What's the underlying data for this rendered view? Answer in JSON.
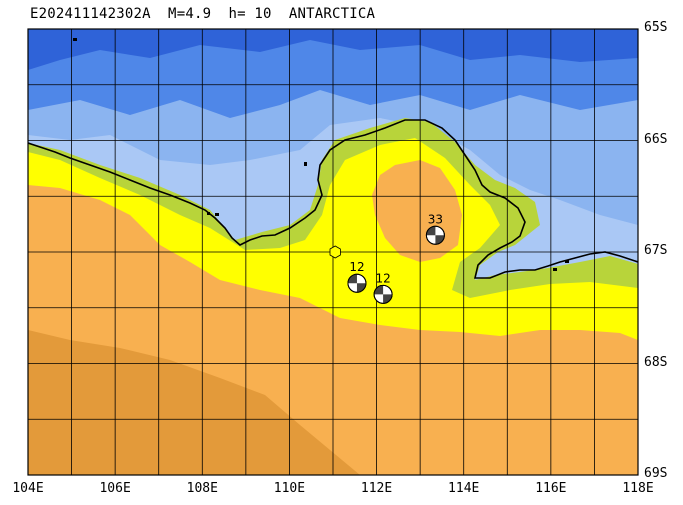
{
  "header": {
    "title": "E202411142302A  M=4.9  h= 10  ANTARCTICA"
  },
  "map": {
    "region": "Antarctica",
    "lon_range": [
      104,
      118
    ],
    "lat_range": [
      -65,
      -69
    ],
    "lon_labels": [
      "104E",
      "106E",
      "108E",
      "110E",
      "112E",
      "114E",
      "116E",
      "118E"
    ],
    "lat_labels": [
      "65S",
      "66S",
      "67S",
      "68S",
      "69S"
    ],
    "colors": {
      "ocean_deep": "#2f63d8",
      "ocean_mid": "#4f87e8",
      "ocean_light": "#8bb4f0",
      "ocean_shelf": "#aac8f5",
      "land_low": "#b8d43a",
      "land_mid": "#ffff00",
      "land_high": "#f8b050",
      "land_top": "#e39a3a",
      "coast": "#000000",
      "grid": "#000000",
      "epicenter": "#ffff00"
    },
    "epicenter": {
      "lon": 111.05,
      "lat": -67.0
    },
    "events": [
      {
        "label": "12",
        "lon": 111.55,
        "lat": -67.28
      },
      {
        "label": "12",
        "lon": 112.15,
        "lat": -67.38
      },
      {
        "label": "33",
        "lon": 113.35,
        "lat": -66.85
      }
    ]
  }
}
